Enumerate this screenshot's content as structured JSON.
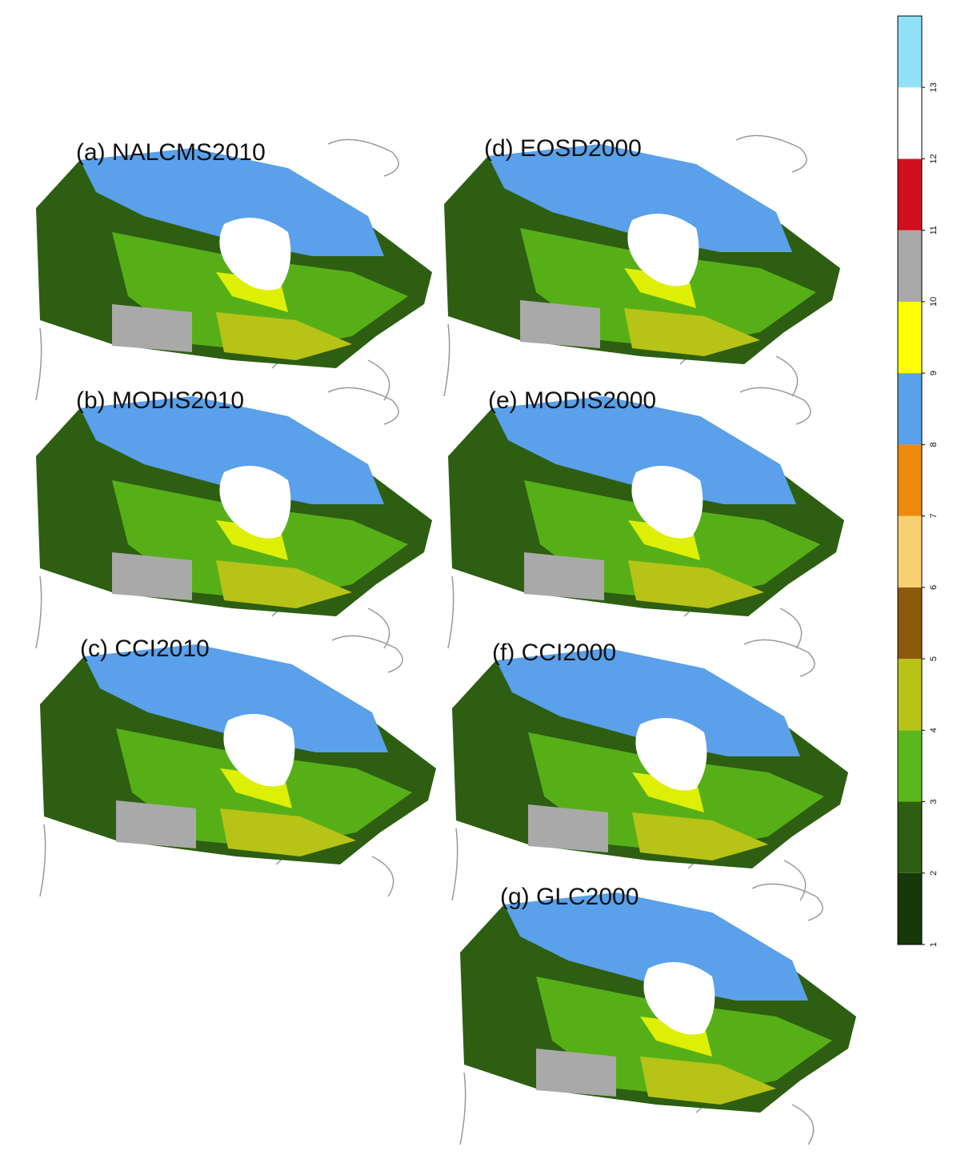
{
  "panels": [
    {
      "label": "(a) NALCMS2010"
    },
    {
      "label": "(b) MODIS2010"
    },
    {
      "label": "(c) CCI2010"
    },
    {
      "label": "(d) EOSD2000"
    },
    {
      "label": "(e) MODIS2000"
    },
    {
      "label": "(f) CCI2000"
    },
    {
      "label": "(g) GLC2000"
    }
  ],
  "legend": {
    "classes": [
      {
        "label": "1",
        "color": "#173808"
      },
      {
        "label": "2",
        "color": "#2d5e12"
      },
      {
        "label": "3",
        "color": "#5cb81a"
      },
      {
        "label": "4",
        "color": "#b7c316"
      },
      {
        "label": "5",
        "color": "#8b5a0c"
      },
      {
        "label": "6",
        "color": "#f6d071"
      },
      {
        "label": "7",
        "color": "#ee8b0d"
      },
      {
        "label": "8",
        "color": "#5aa0ea"
      },
      {
        "label": "9",
        "color": "#ffff00"
      },
      {
        "label": "10",
        "color": "#a9a9a9"
      },
      {
        "label": "11",
        "color": "#d0101e"
      },
      {
        "label": "12",
        "color": "#ffffff"
      },
      {
        "label": "13",
        "color": "#92e0f8"
      }
    ]
  }
}
